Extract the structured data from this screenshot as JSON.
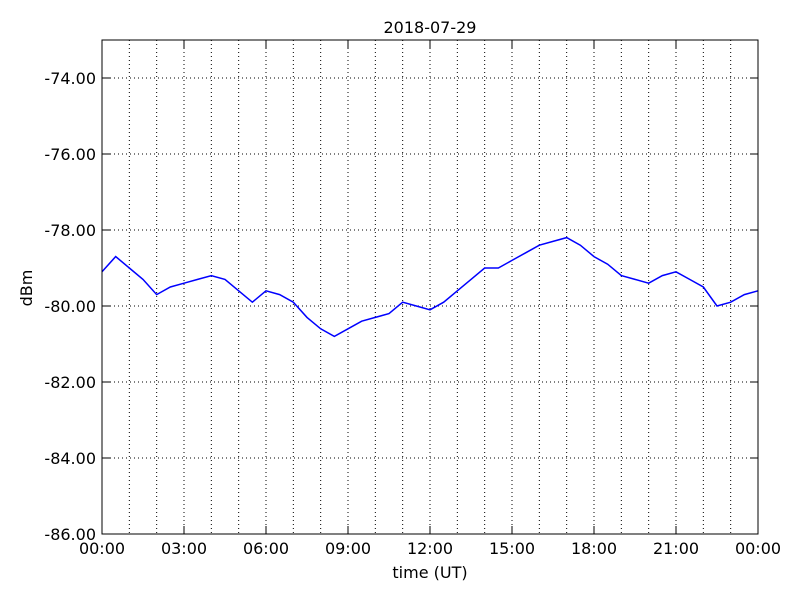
{
  "chart_data": {
    "type": "line",
    "title": "2018-07-29",
    "xlabel": "time (UT)",
    "ylabel": "dBm",
    "x": [
      0,
      0.5,
      1,
      1.5,
      2,
      2.5,
      3,
      3.5,
      4,
      4.5,
      5,
      5.5,
      6,
      6.5,
      7,
      7.5,
      8,
      8.5,
      9,
      9.5,
      10,
      10.5,
      11,
      11.5,
      12,
      12.5,
      13,
      13.5,
      14,
      14.5,
      15,
      15.5,
      16,
      16.5,
      17,
      17.5,
      18,
      18.5,
      19,
      19.5,
      20,
      20.5,
      21,
      21.5,
      22,
      22.5,
      23,
      23.5,
      24
    ],
    "series": [
      {
        "name": "dBm",
        "color": "#0000ff",
        "values": [
          -79.1,
          -78.7,
          -79.0,
          -79.3,
          -79.7,
          -79.5,
          -79.4,
          -79.3,
          -79.2,
          -79.3,
          -79.6,
          -79.9,
          -79.6,
          -79.7,
          -79.9,
          -80.3,
          -80.6,
          -80.8,
          -80.6,
          -80.4,
          -80.3,
          -80.2,
          -79.9,
          -80.0,
          -80.1,
          -79.9,
          -79.6,
          -79.3,
          -79.0,
          -79.0,
          -78.8,
          -78.6,
          -78.4,
          -78.3,
          -78.2,
          -78.4,
          -78.7,
          -78.9,
          -79.2,
          -79.3,
          -79.4,
          -79.2,
          -79.1,
          -79.3,
          -79.5,
          -80.0,
          -79.9,
          -79.7,
          -79.6
        ]
      }
    ],
    "xlim": [
      0,
      24
    ],
    "xticks": [
      {
        "value": 0,
        "label": "00:00"
      },
      {
        "value": 3,
        "label": "03:00"
      },
      {
        "value": 6,
        "label": "06:00"
      },
      {
        "value": 9,
        "label": "09:00"
      },
      {
        "value": 12,
        "label": "12:00"
      },
      {
        "value": 15,
        "label": "15:00"
      },
      {
        "value": 18,
        "label": "18:00"
      },
      {
        "value": 21,
        "label": "21:00"
      },
      {
        "value": 24,
        "label": "00:00"
      }
    ],
    "xminorticks": [
      1,
      2,
      4,
      5,
      7,
      8,
      10,
      11,
      13,
      14,
      16,
      17,
      19,
      20,
      22,
      23
    ],
    "ylim": [
      -86,
      -73
    ],
    "yticks": [
      {
        "value": -86,
        "label": "-86.00"
      },
      {
        "value": -84,
        "label": "-84.00"
      },
      {
        "value": -82,
        "label": "-82.00"
      },
      {
        "value": -80,
        "label": "-80.00"
      },
      {
        "value": -78,
        "label": "-78.00"
      },
      {
        "value": -76,
        "label": "-76.00"
      },
      {
        "value": -74,
        "label": "-74.00"
      }
    ],
    "grid": true
  }
}
